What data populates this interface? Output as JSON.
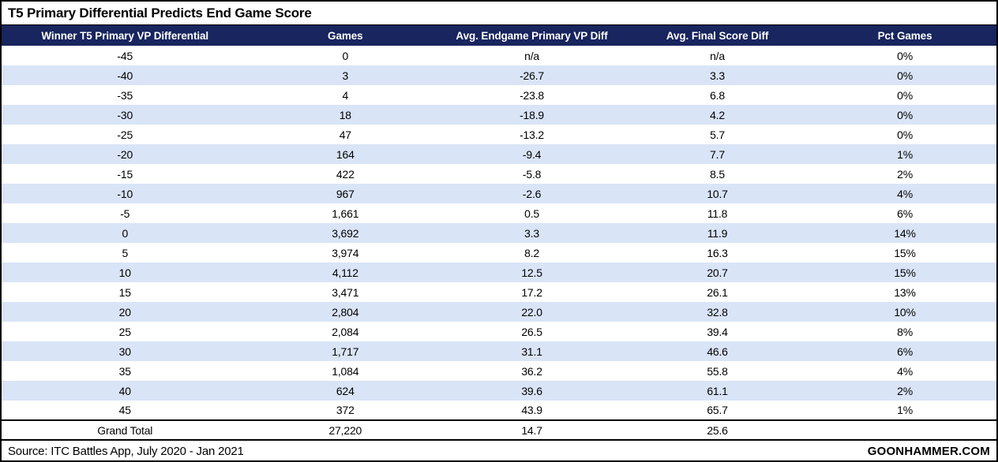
{
  "title": "T5 Primary Differential Predicts End Game Score",
  "chart_data": {
    "type": "table",
    "columns": [
      "Winner T5 Primary VP Differential",
      "Games",
      "Avg. Endgame Primary VP Diff",
      "Avg. Final Score Diff",
      "Pct Games"
    ],
    "rows": [
      [
        "-45",
        "0",
        "n/a",
        "n/a",
        "0%"
      ],
      [
        "-40",
        "3",
        "-26.7",
        "3.3",
        "0%"
      ],
      [
        "-35",
        "4",
        "-23.8",
        "6.8",
        "0%"
      ],
      [
        "-30",
        "18",
        "-18.9",
        "4.2",
        "0%"
      ],
      [
        "-25",
        "47",
        "-13.2",
        "5.7",
        "0%"
      ],
      [
        "-20",
        "164",
        "-9.4",
        "7.7",
        "1%"
      ],
      [
        "-15",
        "422",
        "-5.8",
        "8.5",
        "2%"
      ],
      [
        "-10",
        "967",
        "-2.6",
        "10.7",
        "4%"
      ],
      [
        "-5",
        "1,661",
        "0.5",
        "11.8",
        "6%"
      ],
      [
        "0",
        "3,692",
        "3.3",
        "11.9",
        "14%"
      ],
      [
        "5",
        "3,974",
        "8.2",
        "16.3",
        "15%"
      ],
      [
        "10",
        "4,112",
        "12.5",
        "20.7",
        "15%"
      ],
      [
        "15",
        "3,471",
        "17.2",
        "26.1",
        "13%"
      ],
      [
        "20",
        "2,804",
        "22.0",
        "32.8",
        "10%"
      ],
      [
        "25",
        "2,084",
        "26.5",
        "39.4",
        "8%"
      ],
      [
        "30",
        "1,717",
        "31.1",
        "46.6",
        "6%"
      ],
      [
        "35",
        "1,084",
        "36.2",
        "55.8",
        "4%"
      ],
      [
        "40",
        "624",
        "39.6",
        "61.1",
        "2%"
      ],
      [
        "45",
        "372",
        "43.9",
        "65.7",
        "1%"
      ]
    ],
    "grand_total": [
      "Grand Total",
      "27,220",
      "14.7",
      "25.6",
      ""
    ]
  },
  "footer": {
    "source": "Source: ITC Battles App, July 2020 - Jan 2021",
    "brand": "GOONHAMMER.COM"
  },
  "colors": {
    "header_bg": "#18255E",
    "header_text": "#FFFFFF",
    "row_alt": "#D9E4F7",
    "border": "#000000"
  }
}
